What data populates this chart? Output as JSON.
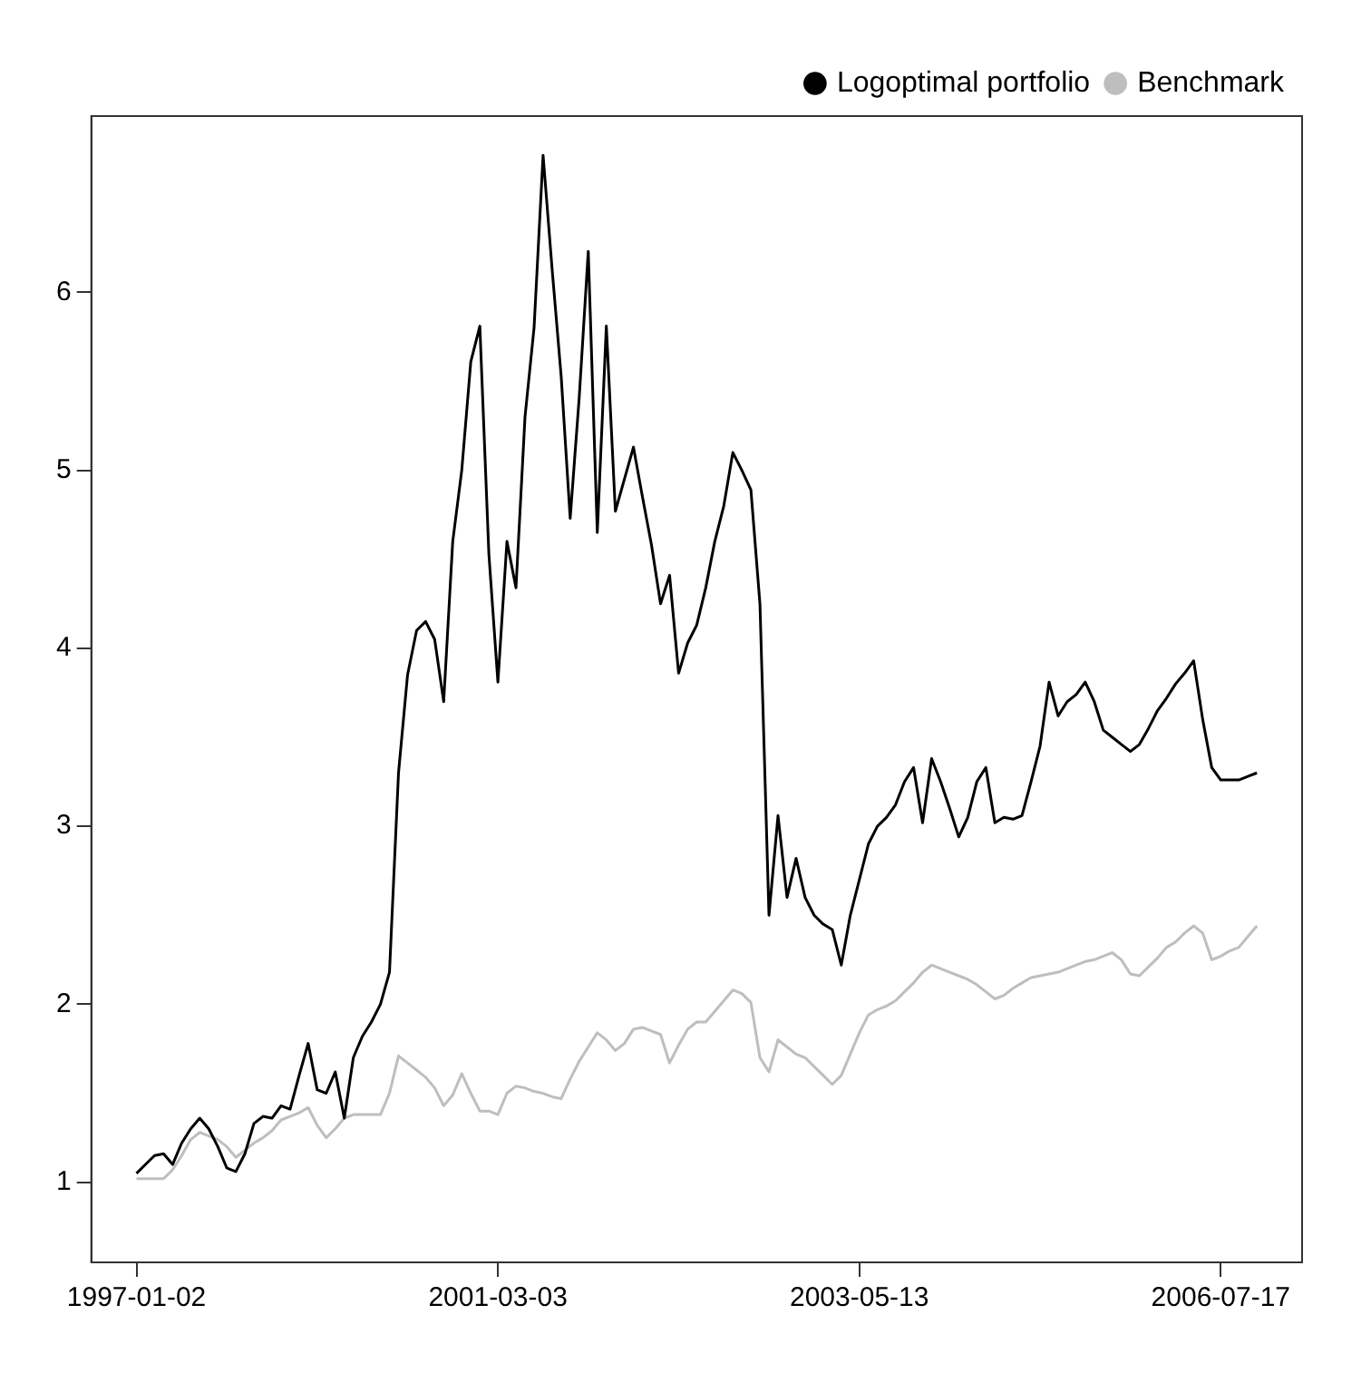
{
  "chart_data": {
    "type": "line",
    "categories": [
      "1997-01-02",
      null,
      null,
      null,
      null,
      null,
      null,
      null,
      null,
      null,
      null,
      null,
      null,
      null,
      null,
      null,
      null,
      null,
      null,
      null,
      null,
      null,
      null,
      null,
      null,
      null,
      null,
      null,
      null,
      null,
      null,
      null,
      null,
      null,
      null,
      null,
      null,
      null,
      null,
      null,
      "2001-03-03",
      null,
      null,
      null,
      null,
      null,
      null,
      null,
      null,
      null,
      null,
      null,
      null,
      null,
      null,
      null,
      null,
      null,
      null,
      null,
      null,
      null,
      null,
      null,
      null,
      null,
      null,
      null,
      null,
      null,
      null,
      null,
      null,
      null,
      null,
      null,
      null,
      null,
      null,
      null,
      "2003-05-13",
      null,
      null,
      null,
      null,
      null,
      null,
      null,
      null,
      null,
      null,
      null,
      null,
      null,
      null,
      null,
      null,
      null,
      null,
      null,
      null,
      null,
      null,
      null,
      null,
      null,
      null,
      null,
      null,
      null,
      null,
      null,
      null,
      null,
      null,
      null,
      null,
      null,
      null,
      null,
      "2006-07-17",
      null,
      null,
      null,
      null
    ],
    "ylim": [
      0.55,
      6.99
    ],
    "yticks": [
      1,
      2,
      3,
      4,
      5,
      6
    ],
    "grid": false,
    "legend": "top right",
    "line_style": "solid",
    "series": [
      {
        "name": "Logoptimal portfolio",
        "color": "#000000",
        "values": [
          1.05,
          1.1,
          1.15,
          1.16,
          1.1,
          1.22,
          1.3,
          1.36,
          1.3,
          1.2,
          1.08,
          1.06,
          1.16,
          1.33,
          1.37,
          1.36,
          1.43,
          1.41,
          1.6,
          1.78,
          1.52,
          1.5,
          1.62,
          1.36,
          1.7,
          1.82,
          1.9,
          2.0,
          2.18,
          3.3,
          3.85,
          4.1,
          4.15,
          4.05,
          3.7,
          4.6,
          5.0,
          5.61,
          5.81,
          4.53,
          3.81,
          4.6,
          4.34,
          5.3,
          5.8,
          6.77,
          6.13,
          5.53,
          4.73,
          5.41,
          6.23,
          4.65,
          5.81,
          4.77,
          4.95,
          5.13,
          4.85,
          4.58,
          4.25,
          4.41,
          3.86,
          4.03,
          4.13,
          4.34,
          4.6,
          4.8,
          5.1,
          5.0,
          4.89,
          4.25,
          2.5,
          3.06,
          2.6,
          2.82,
          2.6,
          2.5,
          2.45,
          2.42,
          2.22,
          2.5,
          2.7,
          2.9,
          3.0,
          3.05,
          3.12,
          3.25,
          3.33,
          3.02,
          3.38,
          3.25,
          3.1,
          2.94,
          3.05,
          3.25,
          3.33,
          3.02,
          3.05,
          3.04,
          3.06,
          3.25,
          3.45,
          3.81,
          3.62,
          3.7,
          3.74,
          3.81,
          3.7,
          3.54,
          3.5,
          3.46,
          3.42,
          3.46,
          3.55,
          3.65,
          3.72,
          3.8,
          3.86,
          3.93,
          3.6,
          3.33,
          3.26,
          3.26,
          3.26,
          3.28,
          3.3
        ]
      },
      {
        "name": "Benchmark",
        "color": "#bebebe",
        "values": [
          1.02,
          1.02,
          1.02,
          1.02,
          1.07,
          1.15,
          1.24,
          1.28,
          1.26,
          1.24,
          1.2,
          1.14,
          1.18,
          1.22,
          1.25,
          1.29,
          1.35,
          1.37,
          1.39,
          1.42,
          1.32,
          1.25,
          1.3,
          1.36,
          1.38,
          1.38,
          1.38,
          1.38,
          1.5,
          1.71,
          1.67,
          1.63,
          1.59,
          1.53,
          1.43,
          1.49,
          1.61,
          1.5,
          1.4,
          1.4,
          1.38,
          1.5,
          1.54,
          1.53,
          1.51,
          1.5,
          1.48,
          1.47,
          1.58,
          1.68,
          1.76,
          1.84,
          1.8,
          1.74,
          1.78,
          1.86,
          1.87,
          1.85,
          1.83,
          1.67,
          1.77,
          1.86,
          1.9,
          1.9,
          1.96,
          2.02,
          2.08,
          2.06,
          2.01,
          1.7,
          1.62,
          1.8,
          1.76,
          1.72,
          1.7,
          1.65,
          1.6,
          1.55,
          1.6,
          1.72,
          1.84,
          1.94,
          1.97,
          1.99,
          2.02,
          2.07,
          2.12,
          2.18,
          2.22,
          2.2,
          2.18,
          2.16,
          2.14,
          2.11,
          2.07,
          2.03,
          2.05,
          2.09,
          2.12,
          2.15,
          2.16,
          2.17,
          2.18,
          2.2,
          2.22,
          2.24,
          2.25,
          2.27,
          2.29,
          2.25,
          2.17,
          2.16,
          2.21,
          2.26,
          2.32,
          2.35,
          2.4,
          2.44,
          2.4,
          2.25,
          2.27,
          2.3,
          2.32,
          2.38,
          2.44
        ]
      }
    ]
  }
}
